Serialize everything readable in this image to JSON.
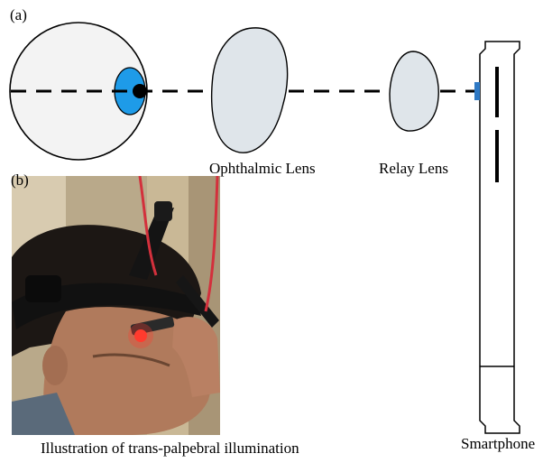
{
  "panels": {
    "a": {
      "label": "(a)"
    },
    "b": {
      "label": "(b)",
      "caption": "Illustration of trans-palpebral illumination"
    }
  },
  "labels": {
    "ophthalmic_lens": "Ophthalmic Lens",
    "relay_lens": "Relay Lens",
    "smartphone": "Smartphone"
  },
  "colors": {
    "iris": "#1e9be8",
    "lens_fill": "#dfe5ea",
    "eyeball_fill": "#f3f3f3",
    "camera": "#2f79c4",
    "outline": "#000000",
    "headset_cable": "#d3303c",
    "light_glow": "#ff3b2f"
  }
}
